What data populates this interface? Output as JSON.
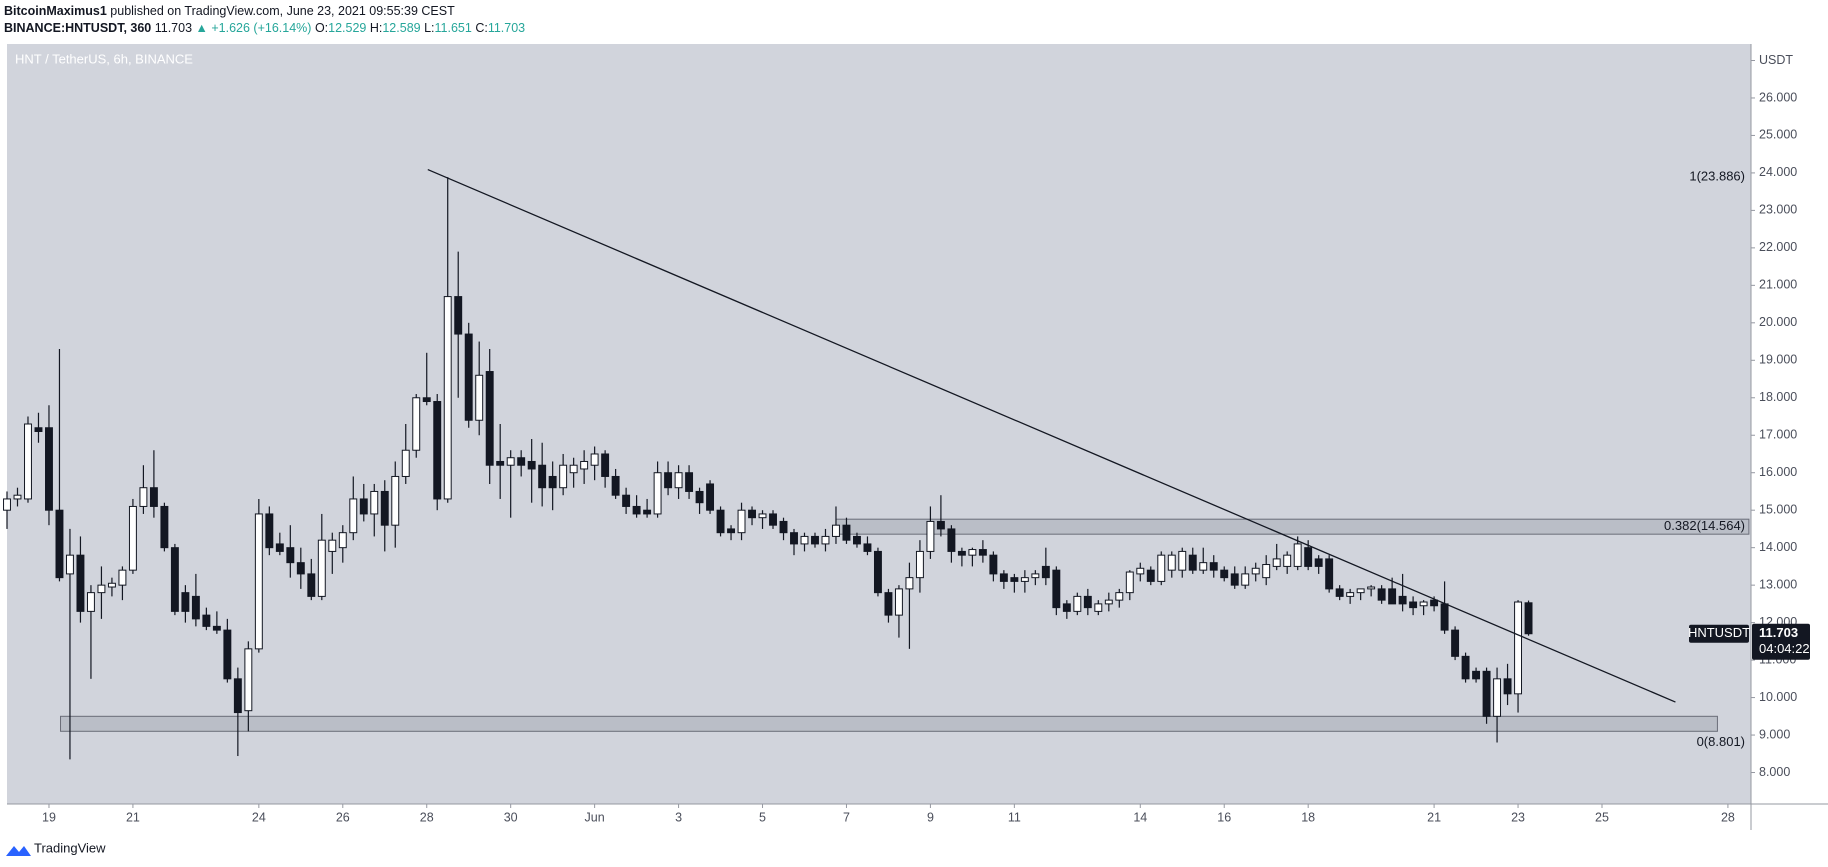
{
  "header": {
    "author": "BitcoinMaximus1",
    "published": "published on TradingView.com, June 23, 2021 09:55:39 CEST",
    "symbol": "BINANCE:HNTUSDT, 360",
    "price": "11.703",
    "change": "▲ +1.626 (+16.14%)",
    "o_label": "O:",
    "o": "12.529",
    "h_label": "H:",
    "h": "12.589",
    "l_label": "L:",
    "l": "11.651",
    "c_label": "C:",
    "c": "11.703"
  },
  "footer": {
    "brand": "TradingView"
  },
  "chart_data": {
    "type": "candlestick",
    "title": "HNT / TetherUS, 6h, BINANCE",
    "up_color": "#ffffff",
    "down_color": "#131722",
    "background": "#d1d4dc",
    "x": [
      0,
      1,
      2,
      3,
      4,
      5,
      6,
      7,
      8,
      9,
      10,
      11,
      12,
      13,
      14,
      15,
      16,
      17,
      18,
      19,
      20,
      21,
      22,
      23,
      24,
      25,
      26,
      27,
      28,
      29,
      30,
      31,
      32,
      33,
      34,
      35,
      36,
      37,
      38,
      39,
      40,
      41,
      42,
      43,
      44,
      45,
      46,
      47,
      48,
      49,
      50,
      51,
      52,
      53,
      54,
      55,
      56,
      57,
      58,
      59,
      60,
      61,
      62,
      63,
      64,
      65,
      66,
      67,
      68,
      69,
      70,
      71,
      72,
      73,
      74,
      75,
      76,
      77,
      78,
      79,
      80,
      81,
      82,
      83,
      84,
      85,
      86,
      87,
      88,
      89,
      90,
      91,
      92,
      93,
      94,
      95,
      96,
      97,
      98,
      99,
      100,
      101,
      102,
      103,
      104,
      105,
      106,
      107,
      108,
      109,
      110,
      111,
      112,
      113,
      114,
      115,
      116,
      117,
      118,
      119,
      120,
      121,
      122,
      123,
      124,
      125,
      126,
      127,
      128,
      129,
      130,
      131,
      132,
      133,
      134,
      135,
      136,
      137,
      138,
      139,
      140,
      141,
      142,
      143,
      144,
      145
    ],
    "ohlc": [
      [
        15.0,
        15.5,
        14.5,
        15.3
      ],
      [
        15.3,
        15.6,
        15.1,
        15.4
      ],
      [
        15.3,
        17.5,
        15.2,
        17.3
      ],
      [
        17.2,
        17.6,
        16.8,
        17.1
      ],
      [
        17.2,
        17.8,
        14.6,
        15.0
      ],
      [
        15.0,
        19.3,
        13.1,
        13.2
      ],
      [
        13.3,
        14.5,
        8.35,
        13.8
      ],
      [
        13.8,
        14.3,
        12.0,
        12.3
      ],
      [
        12.3,
        13.0,
        10.5,
        12.8
      ],
      [
        12.8,
        13.5,
        12.1,
        13.0
      ],
      [
        12.95,
        13.2,
        12.7,
        13.05
      ],
      [
        13.0,
        13.5,
        12.6,
        13.4
      ],
      [
        13.4,
        15.3,
        13.3,
        15.1
      ],
      [
        15.1,
        16.2,
        14.9,
        15.6
      ],
      [
        15.6,
        16.6,
        14.8,
        15.1
      ],
      [
        15.1,
        15.2,
        13.9,
        14.0
      ],
      [
        14.0,
        14.1,
        12.2,
        12.3
      ],
      [
        12.8,
        13.0,
        12.0,
        12.3
      ],
      [
        12.7,
        13.3,
        11.9,
        12.1
      ],
      [
        12.2,
        12.4,
        11.8,
        11.9
      ],
      [
        11.9,
        12.3,
        11.7,
        11.8
      ],
      [
        11.8,
        12.1,
        10.4,
        10.5
      ],
      [
        10.5,
        10.8,
        8.44,
        9.6
      ],
      [
        9.65,
        11.5,
        9.1,
        11.3
      ],
      [
        11.3,
        15.3,
        11.2,
        14.9
      ],
      [
        14.9,
        15.1,
        13.8,
        14.0
      ],
      [
        14.1,
        14.4,
        13.8,
        13.9
      ],
      [
        14.0,
        14.6,
        13.2,
        13.6
      ],
      [
        13.6,
        14.0,
        12.9,
        13.3
      ],
      [
        13.3,
        13.7,
        12.6,
        12.7
      ],
      [
        12.7,
        14.9,
        12.6,
        14.2
      ],
      [
        13.9,
        14.4,
        13.3,
        14.2
      ],
      [
        14.0,
        14.6,
        13.6,
        14.4
      ],
      [
        14.4,
        15.9,
        14.2,
        15.3
      ],
      [
        15.3,
        15.7,
        14.7,
        14.9
      ],
      [
        14.9,
        15.7,
        14.3,
        15.5
      ],
      [
        15.5,
        15.8,
        13.9,
        14.6
      ],
      [
        14.6,
        16.3,
        14.0,
        15.9
      ],
      [
        15.9,
        17.3,
        15.7,
        16.6
      ],
      [
        16.6,
        18.1,
        16.4,
        18.0
      ],
      [
        18.0,
        19.2,
        17.8,
        17.9
      ],
      [
        17.9,
        18.1,
        15.0,
        15.3
      ],
      [
        15.3,
        23.886,
        15.2,
        20.7
      ],
      [
        20.7,
        21.9,
        18.0,
        19.7
      ],
      [
        19.7,
        20.0,
        17.2,
        17.4
      ],
      [
        17.4,
        19.5,
        17.0,
        18.6
      ],
      [
        18.7,
        19.3,
        15.7,
        16.2
      ],
      [
        16.3,
        17.3,
        15.3,
        16.2
      ],
      [
        16.2,
        16.6,
        14.8,
        16.4
      ],
      [
        16.4,
        16.6,
        15.9,
        16.2
      ],
      [
        16.3,
        16.9,
        15.2,
        16.1
      ],
      [
        16.2,
        16.8,
        15.1,
        15.6
      ],
      [
        15.9,
        16.3,
        15.0,
        15.6
      ],
      [
        15.6,
        16.5,
        15.4,
        16.2
      ],
      [
        16.0,
        16.4,
        15.6,
        16.2
      ],
      [
        16.1,
        16.6,
        15.7,
        16.3
      ],
      [
        16.2,
        16.7,
        15.8,
        16.5
      ],
      [
        16.5,
        16.6,
        15.6,
        15.9
      ],
      [
        15.9,
        16.1,
        15.3,
        15.4
      ],
      [
        15.4,
        15.6,
        14.9,
        15.1
      ],
      [
        15.1,
        15.4,
        14.8,
        14.9
      ],
      [
        15.0,
        15.3,
        14.8,
        14.9
      ],
      [
        14.9,
        16.3,
        14.8,
        16.0
      ],
      [
        16.0,
        16.3,
        15.4,
        15.6
      ],
      [
        15.6,
        16.2,
        15.3,
        16.0
      ],
      [
        16.0,
        16.2,
        15.3,
        15.5
      ],
      [
        15.5,
        15.6,
        14.9,
        15.2
      ],
      [
        15.7,
        15.8,
        14.9,
        15.0
      ],
      [
        15.0,
        15.1,
        14.3,
        14.4
      ],
      [
        14.5,
        14.6,
        14.2,
        14.4
      ],
      [
        14.4,
        15.2,
        14.2,
        15.0
      ],
      [
        15.0,
        15.1,
        14.6,
        14.8
      ],
      [
        14.8,
        15.0,
        14.5,
        14.9
      ],
      [
        14.9,
        15.0,
        14.5,
        14.6
      ],
      [
        14.7,
        14.8,
        14.2,
        14.4
      ],
      [
        14.4,
        14.5,
        13.8,
        14.1
      ],
      [
        14.1,
        14.4,
        13.9,
        14.3
      ],
      [
        14.3,
        14.4,
        14.0,
        14.1
      ],
      [
        14.1,
        14.5,
        13.9,
        14.3
      ],
      [
        14.3,
        15.1,
        14.1,
        14.6
      ],
      [
        14.6,
        14.8,
        14.1,
        14.2
      ],
      [
        14.3,
        14.4,
        14.0,
        14.1
      ],
      [
        14.1,
        14.3,
        13.8,
        13.9
      ],
      [
        13.9,
        14.0,
        12.7,
        12.8
      ],
      [
        12.8,
        12.9,
        12.0,
        12.2
      ],
      [
        12.2,
        13.0,
        11.6,
        12.9
      ],
      [
        12.9,
        13.6,
        11.3,
        13.2
      ],
      [
        13.2,
        14.2,
        12.8,
        13.9
      ],
      [
        13.9,
        15.1,
        13.7,
        14.7
      ],
      [
        14.7,
        15.4,
        14.3,
        14.5
      ],
      [
        14.5,
        14.6,
        13.6,
        13.9
      ],
      [
        13.9,
        14.0,
        13.5,
        13.8
      ],
      [
        13.8,
        14.0,
        13.5,
        13.95
      ],
      [
        13.95,
        14.2,
        13.6,
        13.8
      ],
      [
        13.8,
        13.9,
        13.1,
        13.3
      ],
      [
        13.3,
        13.4,
        12.9,
        13.1
      ],
      [
        13.2,
        13.3,
        12.8,
        13.1
      ],
      [
        13.1,
        13.4,
        12.8,
        13.2
      ],
      [
        13.2,
        13.4,
        13.0,
        13.3
      ],
      [
        13.5,
        14.0,
        13.0,
        13.2
      ],
      [
        13.4,
        13.5,
        12.2,
        12.4
      ],
      [
        12.5,
        12.6,
        12.1,
        12.3
      ],
      [
        12.3,
        12.8,
        12.2,
        12.7
      ],
      [
        12.7,
        12.9,
        12.2,
        12.4
      ],
      [
        12.3,
        12.6,
        12.2,
        12.5
      ],
      [
        12.5,
        12.8,
        12.3,
        12.6
      ],
      [
        12.6,
        12.9,
        12.4,
        12.8
      ],
      [
        12.8,
        13.4,
        12.6,
        13.35
      ],
      [
        13.3,
        13.6,
        13.1,
        13.45
      ],
      [
        13.4,
        13.5,
        13.0,
        13.1
      ],
      [
        13.1,
        13.9,
        13.0,
        13.8
      ],
      [
        13.4,
        13.9,
        13.2,
        13.8
      ],
      [
        13.4,
        14.0,
        13.2,
        13.9
      ],
      [
        13.8,
        14.0,
        13.3,
        13.4
      ],
      [
        13.4,
        14.0,
        13.3,
        13.6
      ],
      [
        13.6,
        13.8,
        13.2,
        13.4
      ],
      [
        13.4,
        13.5,
        13.1,
        13.2
      ],
      [
        13.3,
        13.5,
        12.9,
        13.0
      ],
      [
        13.0,
        13.5,
        12.9,
        13.3
      ],
      [
        13.3,
        13.6,
        13.1,
        13.45
      ],
      [
        13.2,
        13.8,
        13.0,
        13.55
      ],
      [
        13.5,
        14.1,
        13.4,
        13.7
      ],
      [
        13.5,
        13.9,
        13.3,
        13.8
      ],
      [
        13.5,
        14.3,
        13.4,
        14.1
      ],
      [
        14.0,
        14.2,
        13.4,
        13.5
      ],
      [
        13.7,
        13.8,
        13.3,
        13.5
      ],
      [
        13.7,
        13.8,
        12.8,
        12.9
      ],
      [
        12.9,
        13.0,
        12.6,
        12.7
      ],
      [
        12.7,
        12.9,
        12.5,
        12.8
      ],
      [
        12.8,
        12.9,
        12.6,
        12.9
      ],
      [
        12.9,
        13.0,
        12.7,
        12.95
      ],
      [
        12.9,
        13.0,
        12.5,
        12.6
      ],
      [
        12.9,
        13.2,
        12.5,
        12.5
      ],
      [
        12.7,
        13.3,
        12.3,
        12.5
      ],
      [
        12.55,
        12.7,
        12.2,
        12.4
      ],
      [
        12.45,
        12.6,
        12.2,
        12.55
      ],
      [
        12.6,
        12.7,
        12.3,
        12.45
      ],
      [
        12.5,
        13.1,
        11.7,
        11.8
      ],
      [
        11.8,
        11.9,
        11.0,
        11.1
      ],
      [
        11.1,
        11.2,
        10.4,
        10.5
      ],
      [
        10.7,
        10.8,
        10.4,
        10.5
      ],
      [
        10.7,
        10.8,
        9.3,
        9.5
      ],
      [
        9.5,
        10.8,
        8.801,
        10.5
      ],
      [
        10.5,
        10.9,
        9.8,
        10.1
      ],
      [
        10.1,
        12.6,
        9.6,
        12.55
      ],
      [
        12.529,
        12.589,
        11.651,
        11.703
      ]
    ],
    "xlim": [
      0,
      166.2
    ],
    "ylim": [
      7.16,
      27.44
    ],
    "xticks": [
      {
        "value": 4,
        "label": "19"
      },
      {
        "value": 12,
        "label": "21"
      },
      {
        "value": 24,
        "label": "24"
      },
      {
        "value": 32,
        "label": "26"
      },
      {
        "value": 40,
        "label": "28"
      },
      {
        "value": 48,
        "label": "30"
      },
      {
        "value": 56,
        "label": "Jun"
      },
      {
        "value": 64,
        "label": "3"
      },
      {
        "value": 72,
        "label": "5"
      },
      {
        "value": 80,
        "label": "7"
      },
      {
        "value": 88,
        "label": "9"
      },
      {
        "value": 96,
        "label": "11"
      },
      {
        "value": 108,
        "label": "14"
      },
      {
        "value": 116,
        "label": "16"
      },
      {
        "value": 124,
        "label": "18"
      },
      {
        "value": 136,
        "label": "21"
      },
      {
        "value": 144,
        "label": "23"
      },
      {
        "value": 152,
        "label": "25"
      },
      {
        "value": 164,
        "label": "28"
      }
    ],
    "yticks": [
      {
        "value": 8,
        "label": "8.000"
      },
      {
        "value": 9,
        "label": "9.000"
      },
      {
        "value": 10,
        "label": "10.000"
      },
      {
        "value": 11,
        "label": "11.000"
      },
      {
        "value": 12,
        "label": "12.000"
      },
      {
        "value": 13,
        "label": "13.000"
      },
      {
        "value": 14,
        "label": "14.000"
      },
      {
        "value": 15,
        "label": "15.000"
      },
      {
        "value": 16,
        "label": "16.000"
      },
      {
        "value": 17,
        "label": "17.000"
      },
      {
        "value": 18,
        "label": "18.000"
      },
      {
        "value": 19,
        "label": "19.000"
      },
      {
        "value": 20,
        "label": "20.000"
      },
      {
        "value": 21,
        "label": "21.000"
      },
      {
        "value": 22,
        "label": "22.000"
      },
      {
        "value": 23,
        "label": "23.000"
      },
      {
        "value": 24,
        "label": "24.000"
      },
      {
        "value": 25,
        "label": "25.000"
      },
      {
        "value": 26,
        "label": "26.000"
      },
      {
        "value": 27,
        "label": "USDT"
      }
    ],
    "trendline": {
      "x": [
        40.1,
        159
      ],
      "y": [
        24.09,
        9.88
      ]
    },
    "zones": [
      {
        "x": [
          79,
          166
        ],
        "y": [
          14.36,
          14.76
        ]
      },
      {
        "x": [
          5.1,
          163
        ],
        "y": [
          9.1,
          9.5
        ]
      }
    ],
    "annotations": [
      {
        "text": "1(23.886)",
        "value": 23.886
      },
      {
        "text": "0.382(14.564)",
        "value": 14.564
      },
      {
        "text": "0(8.801)",
        "value": 8.801
      }
    ],
    "last_price": {
      "symbol": "HNTUSDT",
      "value": 11.703,
      "countdown": "04:04:22"
    }
  }
}
